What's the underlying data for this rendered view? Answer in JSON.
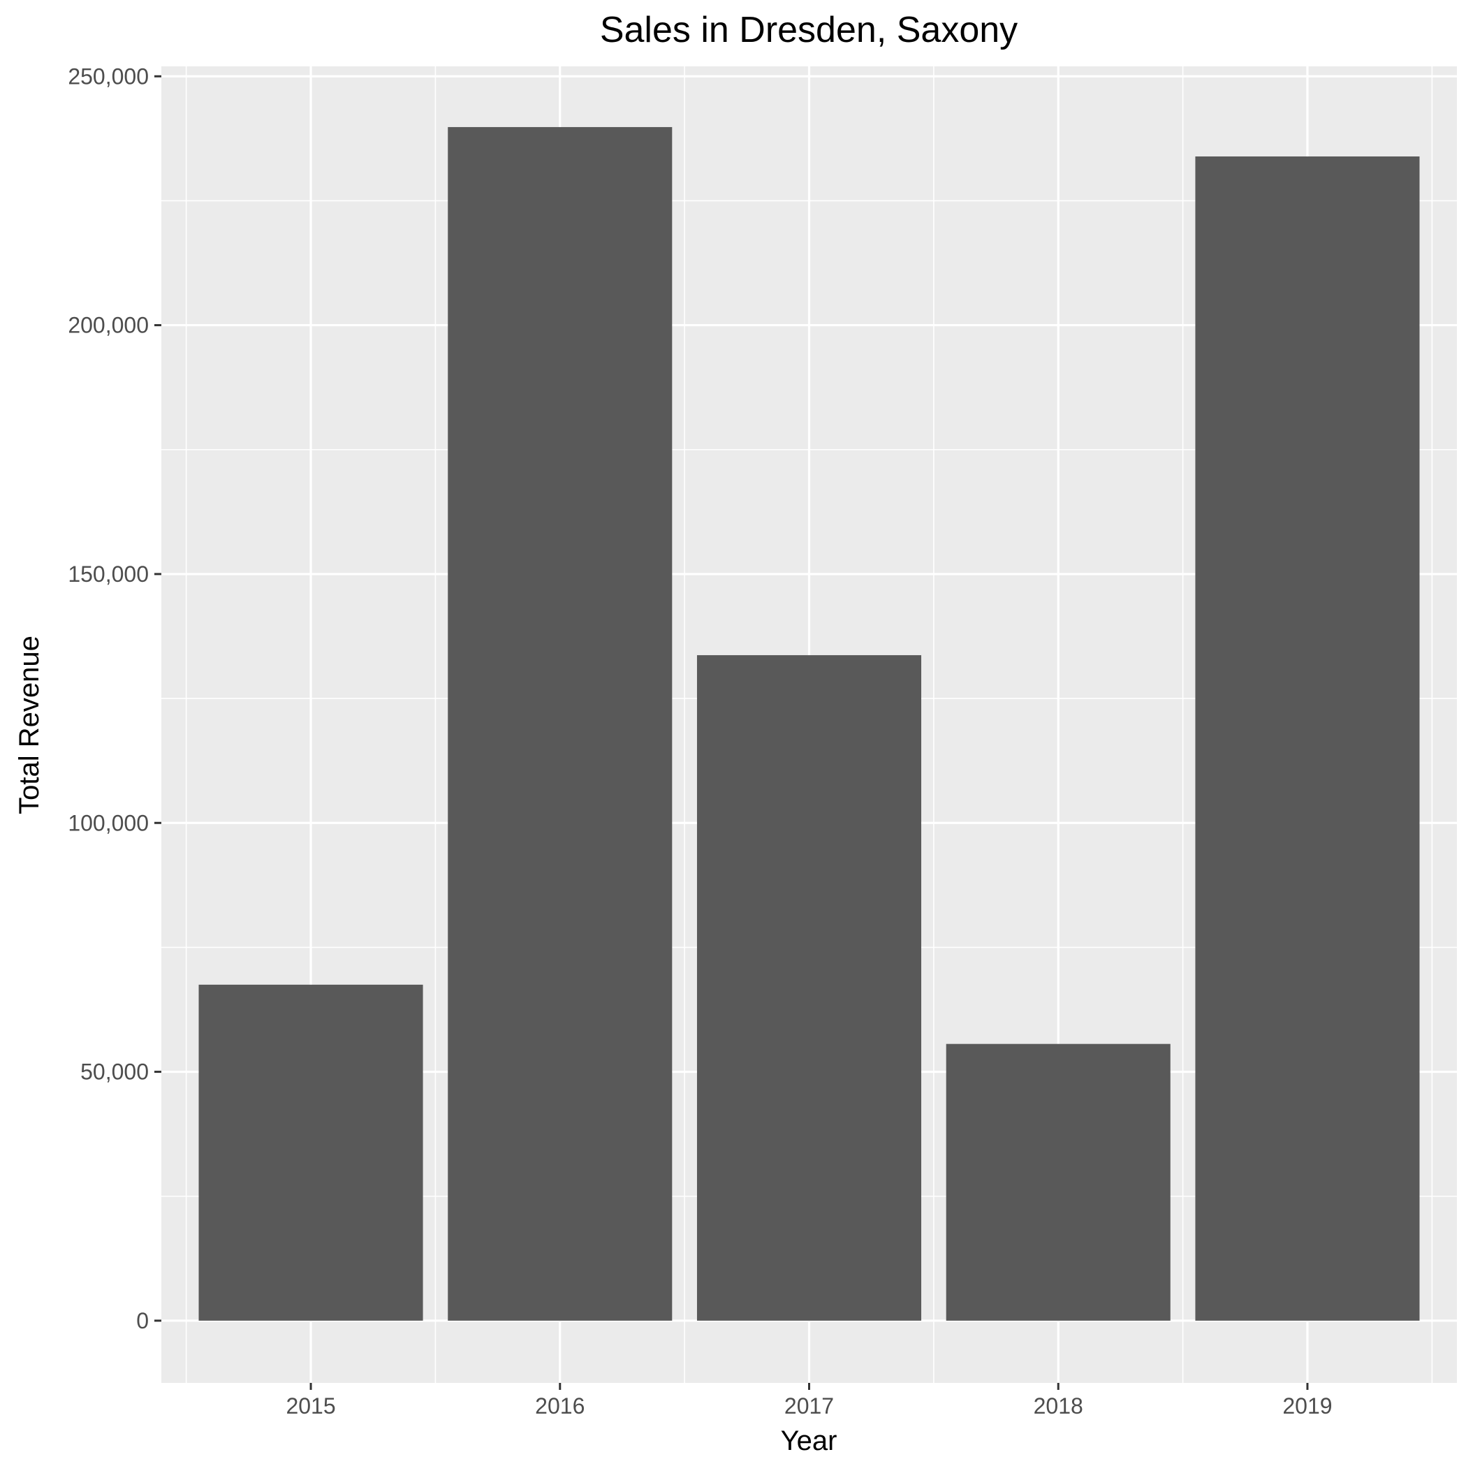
{
  "chart_data": {
    "type": "bar",
    "title": "Sales in Dresden, Saxony",
    "xlabel": "Year",
    "ylabel": "Total Revenue",
    "categories": [
      "2015",
      "2016",
      "2017",
      "2018",
      "2019"
    ],
    "values": [
      67500,
      239800,
      133700,
      55600,
      233900
    ],
    "ylim": [
      -12500,
      252000
    ],
    "yticks": [
      0,
      50000,
      100000,
      150000,
      200000,
      250000
    ],
    "ytick_labels": [
      "0",
      "50,000",
      "100,000",
      "150,000",
      "200,000",
      "250,000"
    ],
    "grid": true,
    "legend": "none",
    "colors": {
      "bar": "#595959",
      "panel_background": "#ebebeb",
      "grid": "#ffffff",
      "tick_text": "#4d4d4d",
      "tick_mark": "#333333"
    }
  }
}
